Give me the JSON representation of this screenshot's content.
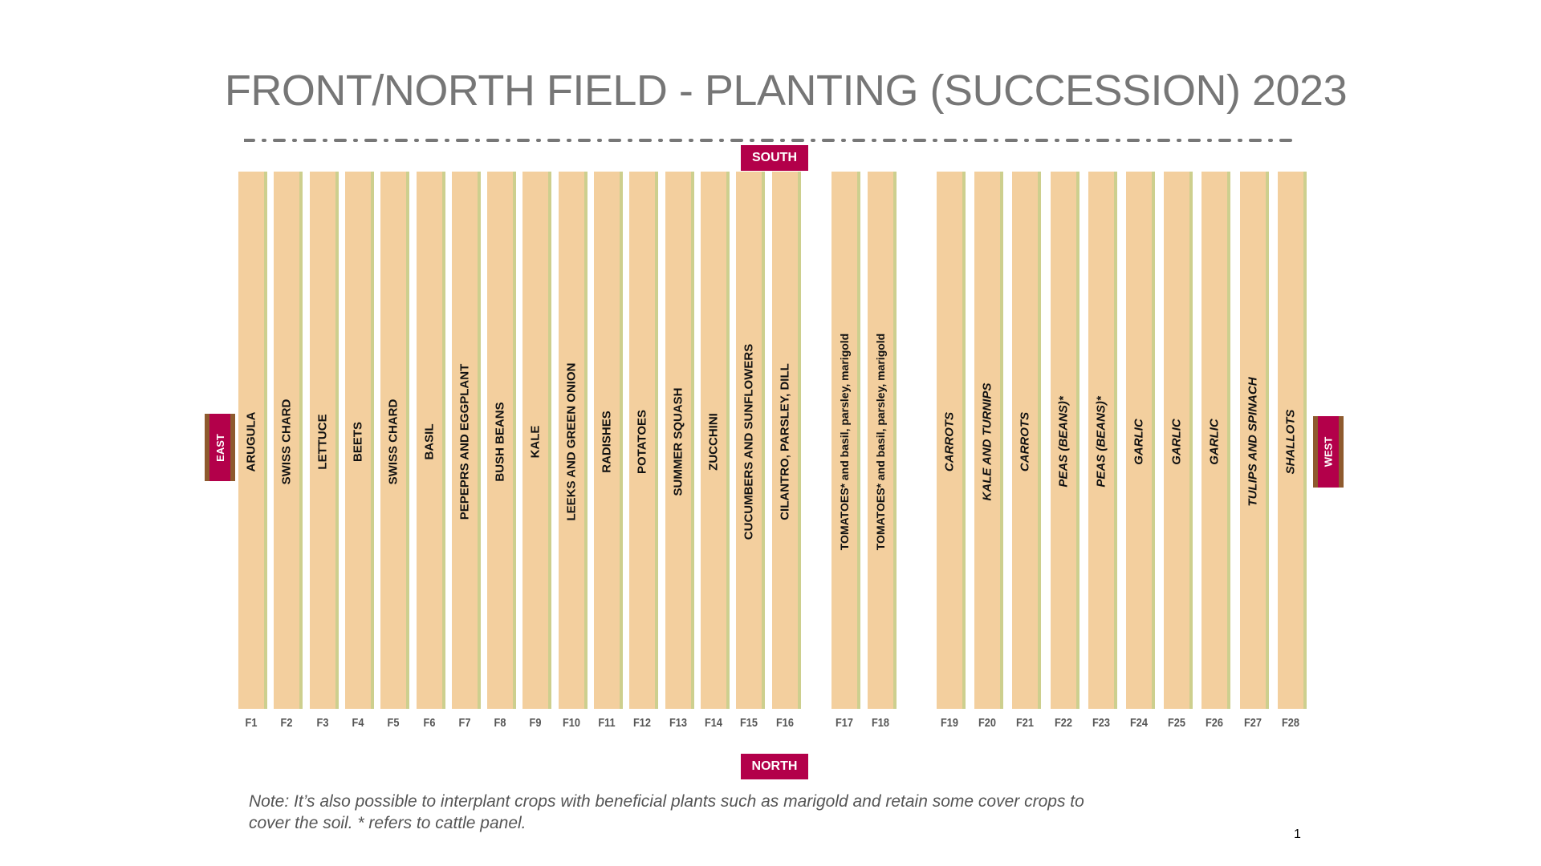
{
  "title": "FRONT/NORTH FIELD - PLANTING (SUCCESSION) 2023",
  "directions": {
    "south": "SOUTH",
    "north": "NORTH",
    "east": "EAST",
    "west": "WEST"
  },
  "colors": {
    "bed_fill": "#f3cf9e",
    "bed_edge": "#cdcf8e",
    "direction_badge": "#b3004a",
    "badge_edge": "#8e5a2e",
    "title": "#767676"
  },
  "beds": [
    {
      "id": "F1",
      "crop": "ARUGULA"
    },
    {
      "id": "F2",
      "crop": "SWISS CHARD"
    },
    {
      "id": "F3",
      "crop": "LETTUCE"
    },
    {
      "id": "F4",
      "crop": "BEETS"
    },
    {
      "id": "F5",
      "crop": "SWISS CHARD"
    },
    {
      "id": "F6",
      "crop": "BASIL"
    },
    {
      "id": "F7",
      "crop": "PEPEPRS AND EGGPLANT"
    },
    {
      "id": "F8",
      "crop": "BUSH BEANS"
    },
    {
      "id": "F9",
      "crop": "KALE"
    },
    {
      "id": "F10",
      "crop": "LEEKS AND GREEN ONION"
    },
    {
      "id": "F11",
      "crop": "RADISHES"
    },
    {
      "id": "F12",
      "crop": "POTATOES"
    },
    {
      "id": "F13",
      "crop": "SUMMER SQUASH"
    },
    {
      "id": "F14",
      "crop": "ZUCCHINI"
    },
    {
      "id": "F15",
      "crop": "CUCUMBERS AND SUNFLOWERS"
    },
    {
      "id": "F16",
      "crop": "CILANTRO, PARSLEY, DILL"
    },
    {
      "id": "F17",
      "crop": "TOMATOES* and basil, parsley, marigold"
    },
    {
      "id": "F18",
      "crop": "TOMATOES* and basil, parsley, marigold"
    },
    {
      "id": "F19",
      "crop": "CARROTS"
    },
    {
      "id": "F20",
      "crop": "KALE AND TURNIPS"
    },
    {
      "id": "F21",
      "crop": "CARROTS"
    },
    {
      "id": "F22",
      "crop": "PEAS (BEANS)*"
    },
    {
      "id": "F23",
      "crop": "PEAS (BEANS)*"
    },
    {
      "id": "F24",
      "crop": "GARLIC"
    },
    {
      "id": "F25",
      "crop": "GARLIC"
    },
    {
      "id": "F26",
      "crop": "GARLIC"
    },
    {
      "id": "F27",
      "crop": "TULIPS AND SPINACH"
    },
    {
      "id": "F28",
      "crop": "SHALLOTS"
    }
  ],
  "note": {
    "line1": "Note:  It’s also possible to interplant crops with beneficial plants such as marigold and retain some cover crops to",
    "line2": "cover the soil. * refers to cattle panel."
  },
  "page_number": "1"
}
